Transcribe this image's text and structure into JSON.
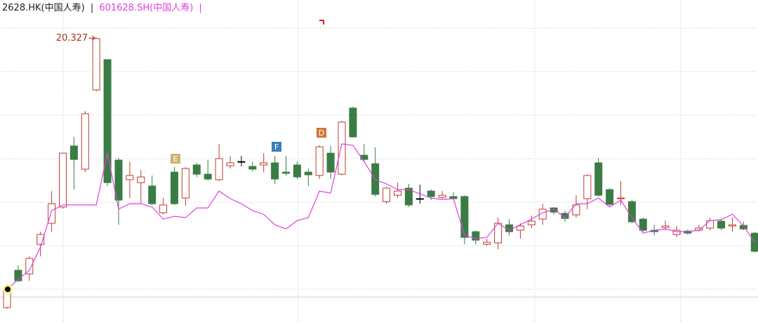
{
  "chart_data": {
    "type": "candlestick",
    "legend": {
      "separator": "|"
    },
    "categories": [
      null,
      null,
      null,
      null,
      null,
      null,
      null,
      null,
      null,
      null,
      null,
      null,
      null,
      null,
      null,
      null,
      null,
      null,
      null,
      null,
      null,
      null,
      null,
      null,
      null,
      null,
      null,
      null,
      null,
      null,
      null,
      null,
      null,
      null,
      null,
      null,
      null,
      null,
      null,
      null,
      null,
      null,
      null,
      null,
      null,
      null,
      null,
      null,
      null,
      null,
      null,
      null,
      null,
      null,
      null,
      null,
      null,
      null,
      null,
      null,
      null,
      null,
      null,
      null,
      null,
      null,
      null,
      null
    ],
    "ylim": [
      6.8,
      22.1
    ],
    "up_color": "#c23b2f",
    "down_color": "#3a7d44",
    "doji_color": "#000000",
    "annotations": [
      {
        "text": "E",
        "color": "#d4b06a"
      },
      {
        "text": "F",
        "color": "#3b7fb9"
      },
      {
        "text": "D",
        "color": "#d2773a"
      }
    ],
    "series": [
      {
        "name": "2628.HK(中国人寿)",
        "type": "candlestick",
        "color": "#000000",
        "open": [
          7.5,
          9.27,
          9.1,
          10.5,
          11.5,
          12.27,
          15.17,
          14.07,
          17.83,
          19.27,
          14.5,
          13.57,
          13.43,
          13.27,
          12.0,
          13.93,
          12.7,
          14.27,
          13.83,
          13.57,
          14.23,
          14.43,
          14.2,
          14.27,
          14.37,
          13.93,
          14.27,
          13.93,
          13.77,
          14.83,
          13.83,
          16.97,
          14.73,
          14.33,
          12.53,
          12.83,
          13.17,
          12.67,
          13.03,
          12.73,
          12.77,
          12.77,
          11.1,
          10.5,
          10.57,
          11.43,
          11.17,
          11.43,
          11.7,
          12.23,
          11.97,
          11.9,
          12.67,
          14.37,
          13.1,
          12.67,
          12.53,
          11.7,
          11.17,
          11.3,
          10.97,
          11.13,
          11.17,
          11.27,
          11.6,
          11.37,
          11.4,
          11.03
        ],
        "high": [
          8.6,
          9.5,
          9.93,
          11.1,
          13.03,
          14.83,
          15.6,
          16.83,
          20.327,
          19.27,
          14.6,
          14.43,
          14.03,
          13.77,
          12.7,
          14.17,
          14.17,
          14.37,
          14.5,
          15.27,
          14.7,
          14.7,
          14.43,
          14.83,
          14.7,
          14.7,
          14.43,
          14.1,
          15.2,
          15.17,
          16.37,
          17.03,
          15.27,
          15.1,
          13.23,
          13.43,
          13.37,
          13.33,
          13.1,
          13.03,
          12.97,
          12.83,
          11.17,
          10.77,
          11.77,
          11.7,
          11.5,
          11.87,
          12.43,
          12.27,
          12.1,
          12.83,
          13.83,
          14.6,
          13.17,
          13.5,
          12.6,
          11.77,
          11.43,
          11.63,
          11.37,
          11.2,
          11.43,
          11.77,
          11.7,
          11.77,
          11.57,
          11.1
        ],
        "low": [
          7.43,
          8.7,
          8.77,
          9.93,
          11.1,
          12.2,
          13.1,
          13.93,
          17.77,
          13.27,
          11.43,
          12.7,
          12.43,
          12.37,
          11.93,
          12.37,
          12.33,
          13.7,
          13.53,
          13.5,
          14.1,
          14.2,
          13.97,
          13.93,
          13.37,
          13.77,
          13.6,
          13.27,
          13.6,
          13.6,
          13.77,
          15.57,
          14.43,
          12.77,
          12.43,
          12.7,
          12.27,
          12.43,
          12.6,
          12.67,
          12.6,
          10.5,
          10.5,
          10.43,
          10.27,
          10.93,
          10.77,
          11.27,
          11.43,
          11.93,
          11.57,
          11.77,
          12.17,
          12.77,
          12.33,
          12.37,
          11.5,
          11.1,
          10.93,
          11.17,
          10.83,
          10.97,
          11.1,
          11.17,
          11.17,
          11.1,
          11.17,
          10.1
        ],
        "close": [
          8.37,
          8.77,
          9.83,
          10.97,
          12.43,
          14.83,
          14.53,
          16.7,
          20.27,
          13.43,
          12.6,
          13.77,
          13.7,
          12.43,
          12.37,
          12.43,
          14.1,
          13.83,
          13.6,
          14.57,
          14.37,
          14.43,
          14.07,
          14.37,
          13.6,
          13.87,
          13.7,
          13.8,
          15.13,
          13.93,
          16.3,
          15.6,
          14.53,
          12.87,
          13.17,
          13.03,
          12.37,
          12.67,
          12.77,
          12.83,
          12.67,
          10.83,
          10.7,
          10.6,
          11.5,
          11.1,
          11.37,
          11.6,
          12.17,
          12.03,
          11.73,
          12.37,
          13.77,
          12.83,
          12.4,
          12.7,
          11.57,
          11.17,
          11.1,
          11.37,
          11.17,
          11.03,
          11.27,
          11.63,
          11.27,
          11.43,
          11.23,
          10.17
        ]
      },
      {
        "name": "601628.SH(中国人寿)",
        "type": "line",
        "color": "#e040e0",
        "values": [
          8.37,
          8.83,
          9.27,
          10.37,
          12.1,
          12.37,
          12.37,
          12.37,
          12.37,
          14.83,
          12.17,
          12.43,
          12.43,
          12.27,
          11.7,
          11.83,
          11.77,
          12.23,
          12.23,
          13.03,
          12.67,
          12.43,
          12.1,
          11.93,
          11.43,
          11.23,
          11.63,
          11.77,
          13.03,
          12.93,
          15.27,
          15.2,
          14.43,
          13.57,
          13.37,
          13.1,
          13.1,
          12.9,
          12.7,
          12.63,
          12.67,
          10.93,
          10.77,
          10.83,
          11.5,
          11.17,
          11.43,
          11.7,
          12.0,
          12.17,
          11.77,
          12.43,
          12.43,
          12.7,
          12.27,
          12.6,
          11.77,
          11.03,
          11.17,
          11.23,
          11.1,
          11.1,
          11.17,
          11.63,
          11.67,
          11.93,
          11.37,
          10.6
        ]
      }
    ]
  }
}
